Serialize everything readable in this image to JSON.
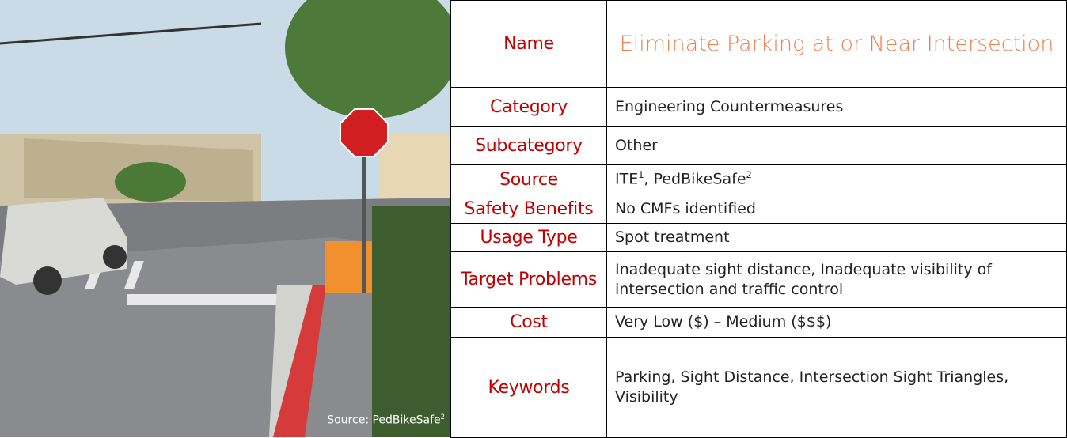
{
  "photo": {
    "caption": {
      "text": "Source: PedBikeSafe",
      "note": "2"
    }
  },
  "table": {
    "rows": [
      {
        "label": "Name",
        "value": "Eliminate Parking at or Near Intersection"
      },
      {
        "label": "Category",
        "value": "Engineering Countermeasures"
      },
      {
        "label": "Subcategory",
        "value": "Other"
      },
      {
        "label": "Source",
        "parts": [
          {
            "text": "ITE",
            "note": "1"
          },
          {
            "text": "PedBikeSafe",
            "note": "2"
          }
        ],
        "separator": ", "
      },
      {
        "label": "Safety Benefits",
        "value": "No CMFs identified"
      },
      {
        "label": "Usage Type",
        "value": "Spot treatment"
      },
      {
        "label": "Target Problems",
        "value": "Inadequate sight distance, Inadequate visibility of intersection and traffic control"
      },
      {
        "label": "Cost",
        "value": "Very Low ($) – Medium ($$$)"
      },
      {
        "label": "Keywords",
        "value": "Parking, Sight Distance, Intersection Sight Triangles, Visibility"
      }
    ]
  }
}
